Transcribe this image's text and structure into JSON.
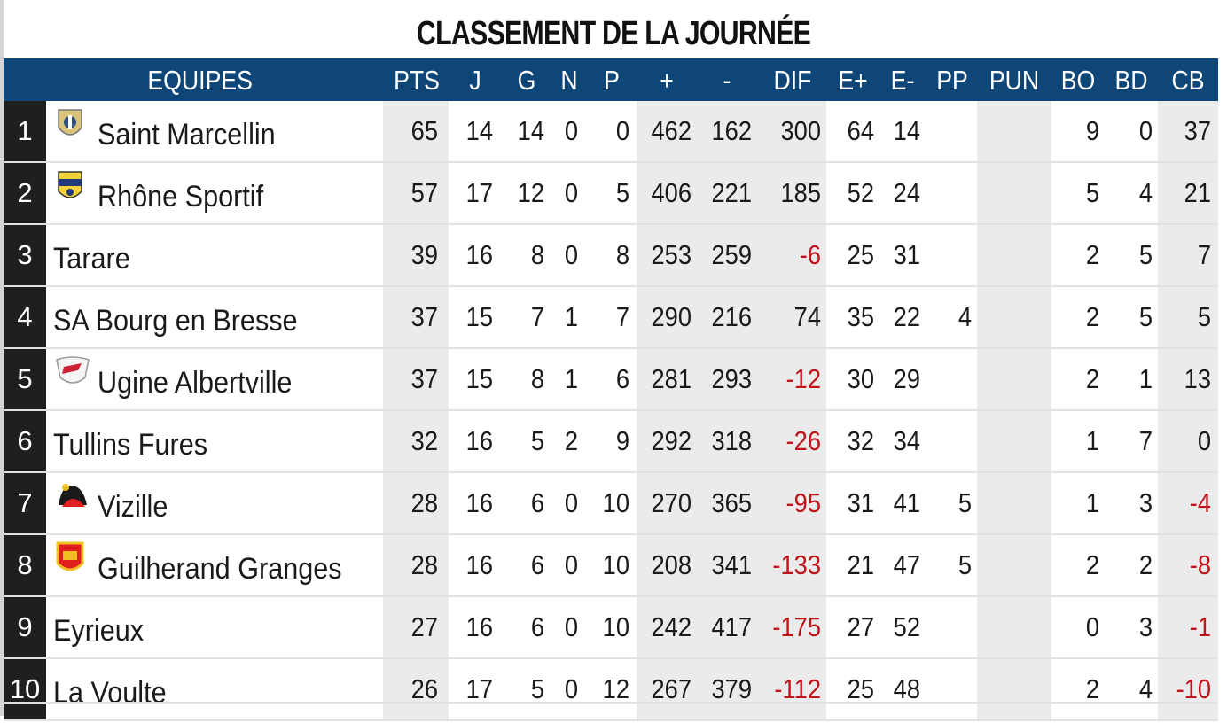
{
  "title": "CLASSEMENT DE LA JOURNÉE",
  "columns": [
    "EQUIPES",
    "PTS",
    "J",
    "G",
    "N",
    "P",
    "+",
    "-",
    "DIF",
    "E+",
    "E-",
    "PP",
    "PUN",
    "BO",
    "BD",
    "CB"
  ],
  "colors": {
    "header_bg": "#0f4678",
    "negative": "#c0141c",
    "rank_bg": "#1f1f1f",
    "shade": "#ebebeb"
  },
  "rows": [
    {
      "rank": "1",
      "team": "Saint Marcellin",
      "logo": "saint-marcellin-logo",
      "pts": "65",
      "j": "14",
      "g": "14",
      "n": "0",
      "p": "0",
      "plus": "462",
      "minus": "162",
      "dif": "300",
      "eplus": "64",
      "eminus": "14",
      "pp": "",
      "pun": "",
      "bo": "9",
      "bd": "0",
      "cb": "37"
    },
    {
      "rank": "2",
      "team": "Rhône Sportif",
      "logo": "rhone-sportif-logo",
      "pts": "57",
      "j": "17",
      "g": "12",
      "n": "0",
      "p": "5",
      "plus": "406",
      "minus": "221",
      "dif": "185",
      "eplus": "52",
      "eminus": "24",
      "pp": "",
      "pun": "",
      "bo": "5",
      "bd": "4",
      "cb": "21"
    },
    {
      "rank": "3",
      "team": "Tarare",
      "logo": "",
      "pts": "39",
      "j": "16",
      "g": "8",
      "n": "0",
      "p": "8",
      "plus": "253",
      "minus": "259",
      "dif": "-6",
      "eplus": "25",
      "eminus": "31",
      "pp": "",
      "pun": "",
      "bo": "2",
      "bd": "5",
      "cb": "7"
    },
    {
      "rank": "4",
      "team": "SA Bourg en Bresse",
      "logo": "",
      "pts": "37",
      "j": "15",
      "g": "7",
      "n": "1",
      "p": "7",
      "plus": "290",
      "minus": "216",
      "dif": "74",
      "eplus": "35",
      "eminus": "22",
      "pp": "4",
      "pun": "",
      "bo": "2",
      "bd": "5",
      "cb": "5"
    },
    {
      "rank": "5",
      "team": "Ugine Albertville",
      "logo": "ugine-albertville-logo",
      "pts": "37",
      "j": "15",
      "g": "8",
      "n": "1",
      "p": "6",
      "plus": "281",
      "minus": "293",
      "dif": "-12",
      "eplus": "30",
      "eminus": "29",
      "pp": "",
      "pun": "",
      "bo": "2",
      "bd": "1",
      "cb": "13"
    },
    {
      "rank": "6",
      "team": "Tullins Fures",
      "logo": "",
      "pts": "32",
      "j": "16",
      "g": "5",
      "n": "2",
      "p": "9",
      "plus": "292",
      "minus": "318",
      "dif": "-26",
      "eplus": "32",
      "eminus": "34",
      "pp": "",
      "pun": "",
      "bo": "1",
      "bd": "7",
      "cb": "0"
    },
    {
      "rank": "7",
      "team": "Vizille",
      "logo": "vizille-logo",
      "pts": "28",
      "j": "16",
      "g": "6",
      "n": "0",
      "p": "10",
      "plus": "270",
      "minus": "365",
      "dif": "-95",
      "eplus": "31",
      "eminus": "41",
      "pp": "5",
      "pun": "",
      "bo": "1",
      "bd": "3",
      "cb": "-4"
    },
    {
      "rank": "8",
      "team": "Guilherand Granges",
      "logo": "guilherand-granges-logo",
      "pts": "28",
      "j": "16",
      "g": "6",
      "n": "0",
      "p": "10",
      "plus": "208",
      "minus": "341",
      "dif": "-133",
      "eplus": "21",
      "eminus": "47",
      "pp": "5",
      "pun": "",
      "bo": "2",
      "bd": "2",
      "cb": "-8"
    },
    {
      "rank": "9",
      "team": "Eyrieux",
      "logo": "",
      "pts": "27",
      "j": "16",
      "g": "6",
      "n": "0",
      "p": "10",
      "plus": "242",
      "minus": "417",
      "dif": "-175",
      "eplus": "27",
      "eminus": "52",
      "pp": "",
      "pun": "",
      "bo": "0",
      "bd": "3",
      "cb": "-1"
    },
    {
      "rank": "10",
      "team": "La Voulte",
      "logo": "",
      "pts": "26",
      "j": "17",
      "g": "5",
      "n": "0",
      "p": "12",
      "plus": "267",
      "minus": "379",
      "dif": "-112",
      "eplus": "25",
      "eminus": "48",
      "pp": "",
      "pun": "",
      "bo": "2",
      "bd": "4",
      "cb": "-10"
    }
  ]
}
